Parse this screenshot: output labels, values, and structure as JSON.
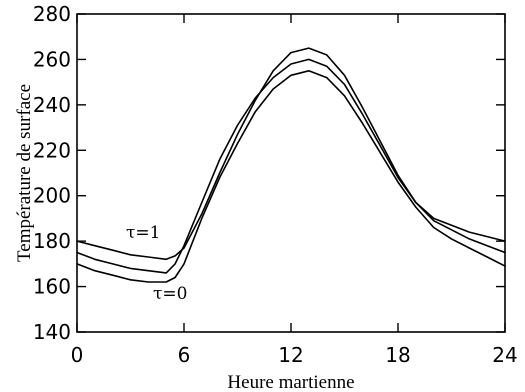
{
  "chart_data": {
    "type": "line",
    "title": "",
    "xlabel": "Heure martienne",
    "ylabel": "Température de surface",
    "xlim": [
      0,
      24
    ],
    "ylim": [
      140,
      280
    ],
    "x_ticks": [
      "0",
      "6",
      "12",
      "18",
      "24"
    ],
    "y_ticks": [
      "140",
      "160",
      "180",
      "200",
      "220",
      "240",
      "260",
      "280"
    ],
    "grid": false,
    "legend": "none",
    "line_color": "#000000",
    "annotations": [
      {
        "text": "τ=1"
      },
      {
        "text": "τ=0"
      }
    ],
    "series": [
      {
        "x": [
          0,
          1,
          2,
          3,
          4,
          5,
          5.5,
          6,
          7,
          8,
          9,
          10,
          11,
          12,
          13,
          14,
          15,
          16,
          17,
          18,
          19,
          20,
          21,
          22,
          23,
          24
        ],
        "y": [
          180,
          178,
          176,
          174,
          173,
          172,
          173.5,
          177,
          192,
          210,
          227,
          242,
          255,
          263,
          265,
          262,
          253,
          239,
          224,
          209,
          197,
          190,
          187,
          184,
          182,
          180
        ]
      },
      {
        "x": [
          0,
          1,
          2,
          3,
          4,
          5,
          5.5,
          6,
          7,
          8,
          9,
          10,
          11,
          12,
          13,
          14,
          15,
          16,
          17,
          18,
          19,
          20,
          21,
          22,
          23,
          24
        ],
        "y": [
          175,
          172,
          170,
          168,
          167,
          166,
          170,
          178,
          197,
          216,
          231,
          243,
          252,
          258,
          260,
          257,
          249,
          236,
          222,
          208,
          197,
          189,
          185,
          181,
          178,
          175
        ]
      },
      {
        "x": [
          0,
          1,
          2,
          3,
          4,
          5,
          5.5,
          6,
          7,
          8,
          9,
          10,
          11,
          12,
          13,
          14,
          15,
          16,
          17,
          18,
          19,
          20,
          21,
          22,
          23,
          24
        ],
        "y": [
          170,
          167,
          165,
          163,
          162,
          162,
          164,
          170,
          190,
          208,
          223,
          237,
          247,
          253,
          255,
          252,
          244,
          232,
          219,
          206,
          195,
          186,
          181,
          177,
          173,
          169
        ]
      }
    ]
  }
}
